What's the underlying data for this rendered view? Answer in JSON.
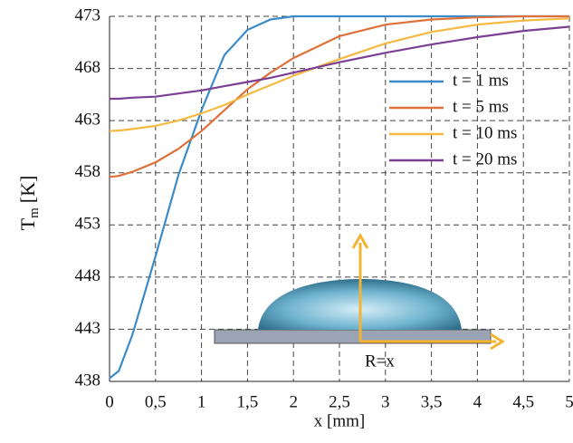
{
  "chart_data": {
    "type": "line",
    "ylabel": [
      "T",
      "m",
      "[K]"
    ],
    "xlabel": "x [mm]",
    "annotation": "R=x",
    "x": [
      0,
      0.1,
      0.25,
      0.5,
      0.75,
      1,
      1.25,
      1.5,
      1.75,
      2,
      2.5,
      3,
      3.5,
      4,
      4.5,
      5
    ],
    "series": [
      {
        "name": "t = 1 ms",
        "color": "#3b8bc8",
        "values": [
          438.3,
          439,
          442.5,
          450,
          457.8,
          464,
          469.3,
          471.7,
          472.7,
          473,
          473,
          473,
          473,
          473,
          473,
          473
        ]
      },
      {
        "name": "t = 5 ms",
        "color": "#e0703a",
        "values": [
          457.6,
          457.7,
          458.1,
          459,
          460.3,
          462,
          464,
          466,
          467.6,
          469,
          471.1,
          472.2,
          472.7,
          472.9,
          473,
          473
        ]
      },
      {
        "name": "t = 10 ms",
        "color": "#f5b942",
        "values": [
          462,
          462.05,
          462.2,
          462.5,
          463,
          463.7,
          464.5,
          465.5,
          466.4,
          467.3,
          468.9,
          470.4,
          471.5,
          472.2,
          472.6,
          472.8
        ]
      },
      {
        "name": "t = 20 ms",
        "color": "#7b3f94",
        "values": [
          465.1,
          465.1,
          465.2,
          465.3,
          465.6,
          465.9,
          466.3,
          466.7,
          467.1,
          467.6,
          468.6,
          469.5,
          470.3,
          471,
          471.6,
          472
        ]
      }
    ],
    "xlim": [
      0,
      5
    ],
    "xticks": [
      0,
      {
        "value": 0.5,
        "label": "0,5"
      },
      1,
      {
        "value": 1.5,
        "label": "1,5"
      },
      2,
      {
        "value": 2.5,
        "label": "2,5"
      },
      3,
      {
        "value": 3.5,
        "label": "3,5"
      },
      4,
      {
        "value": 4.5,
        "label": "4,5"
      },
      5
    ],
    "ylim": [
      438,
      473
    ],
    "yticks": [
      438,
      443,
      448,
      453,
      458,
      463,
      468,
      473
    ],
    "grid": true,
    "legend": "upper right"
  }
}
